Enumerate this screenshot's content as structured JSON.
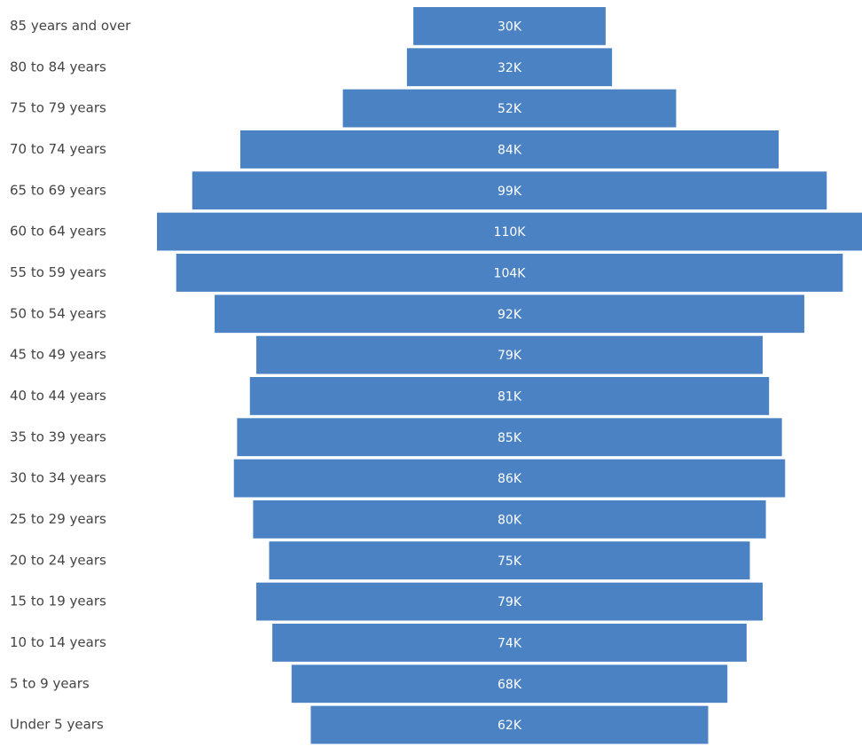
{
  "chart_data": {
    "type": "funnel",
    "color": "#4a82c4",
    "categories": [
      "85 years and over",
      "80 to 84 years",
      "75 to 79 years",
      "70 to 74 years",
      "65 to 69 years",
      "60 to 64 years",
      "55 to 59 years",
      "50 to 54 years",
      "45 to 49 years",
      "40 to 44 years",
      "35 to 39 years",
      "30 to 34 years",
      "25 to 29 years",
      "20 to 24 years",
      "15 to 19 years",
      "10 to 14 years",
      "5 to 9 years",
      "Under 5 years"
    ],
    "values": [
      30000,
      32000,
      52000,
      84000,
      99000,
      110000,
      104000,
      92000,
      79000,
      81000,
      85000,
      86000,
      80000,
      75000,
      79000,
      74000,
      68000,
      62000
    ],
    "value_labels": [
      "30K",
      "32K",
      "52K",
      "84K",
      "99K",
      "110K",
      "104K",
      "92K",
      "79K",
      "81K",
      "85K",
      "86K",
      "80K",
      "75K",
      "79K",
      "74K",
      "68K",
      "62K"
    ]
  }
}
